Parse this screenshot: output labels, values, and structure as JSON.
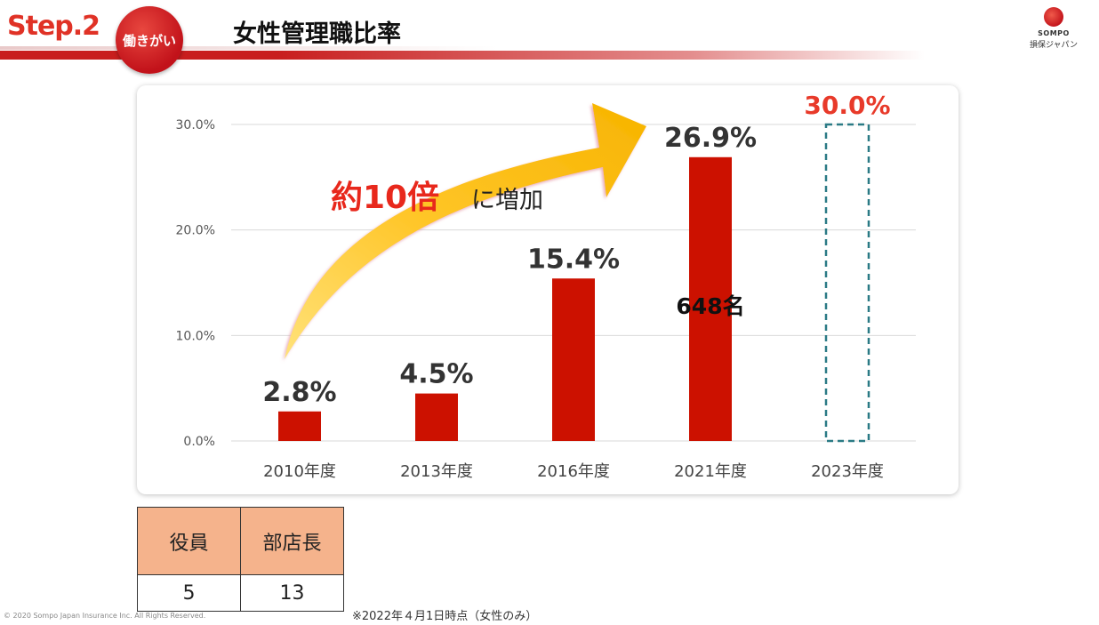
{
  "header": {
    "step_label": "Step.2",
    "badge_text": "働きがい",
    "title": "女性管理職比率",
    "logo_en": "SOMPO",
    "logo_jp": "損保ジャパン"
  },
  "annotations": {
    "arrow_text_main": "約10倍",
    "arrow_text_sub": "に増加",
    "headcount_label": "648名"
  },
  "chart_data": {
    "type": "bar",
    "categories": [
      "2010年度",
      "2013年度",
      "2016年度",
      "2021年度",
      "2023年度"
    ],
    "values": [
      2.8,
      4.5,
      15.4,
      26.9,
      30.0
    ],
    "data_labels": [
      "2.8%",
      "4.5%",
      "15.4%",
      "26.9%",
      "30.0%"
    ],
    "target_index": 4,
    "ylim": [
      0,
      30
    ],
    "yticks": [
      0,
      10,
      20,
      30
    ],
    "ytick_labels": [
      "0.0%",
      "10.0%",
      "20.0%",
      "30.0%"
    ],
    "grid": true,
    "bar_color": "#cc1100",
    "target_color": "#2a7a85",
    "target_label_color": "#e83a2a"
  },
  "table": {
    "headers": [
      "役員",
      "部店長"
    ],
    "values": [
      "5",
      "13"
    ],
    "header_color": "#f5b38c"
  },
  "footnote": "※2022年４月1日時点（女性のみ）",
  "copyright": "© 2020 Sompo Japan Insurance Inc. All Rights Reserved."
}
